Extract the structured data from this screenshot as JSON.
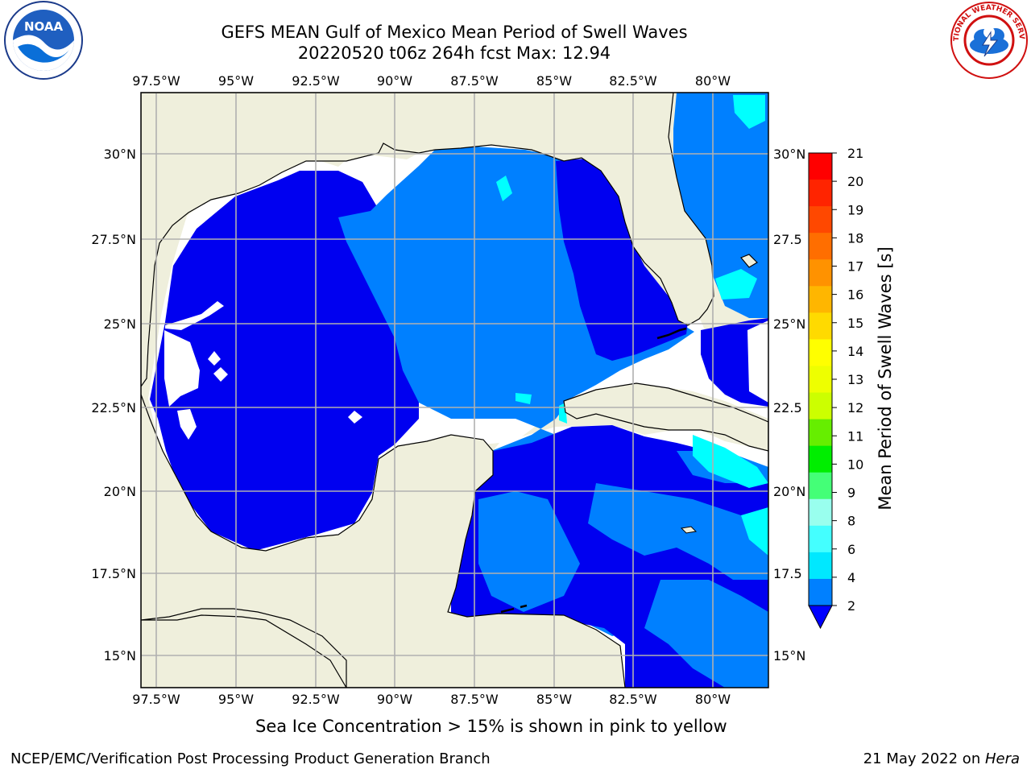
{
  "header": {
    "title_line1": "GEFS MEAN Gulf of Mexico Mean Period of Swell Waves",
    "title_line2": "20220520 t06z 264h fcst   Max: 12.94"
  },
  "logos": {
    "left": "noaa-logo",
    "left_text": "NOAA",
    "right": "national-weather-service-logo",
    "right_text": "NATIONAL WEATHER SERVICE"
  },
  "map": {
    "lon_labels": [
      "97.5°W",
      "95°W",
      "92.5°W",
      "90°W",
      "87.5°W",
      "85°W",
      "82.5°W",
      "80°W"
    ],
    "lat_labels_left": [
      "30°N",
      "27.5°N",
      "25°N",
      "22.5°N",
      "20°N",
      "17.5°N",
      "15°N"
    ],
    "lat_labels_right": [
      "30°N",
      "27.5",
      "25°N",
      "22.5",
      "20°N",
      "17.5",
      "15°N"
    ],
    "lon_range": [
      -98,
      -78
    ],
    "lat_range": [
      14,
      31.5
    ],
    "colors": {
      "land": "#efefdc",
      "grid": "#b0b0b0",
      "period_2_4": "#0080ff",
      "period_below_2": "#0000f0",
      "period_4_6": "#00ffff",
      "period_10_11": "#4fdd00",
      "period_11_12": "#6fff00",
      "period_12_13": "#ccff00"
    }
  },
  "colorbar": {
    "label": "Mean Period of Swell Waves [s]",
    "ticks": [
      "21",
      "20",
      "19",
      "18",
      "17",
      "16",
      "15",
      "14",
      "13",
      "12",
      "11",
      "10",
      "9",
      "8",
      "6",
      "4",
      "2"
    ],
    "colors": [
      "#ff0000",
      "#ff2400",
      "#ff4800",
      "#ff6e00",
      "#ff9200",
      "#ffb600",
      "#ffda00",
      "#ffff00",
      "#eeff00",
      "#ccff00",
      "#66ee00",
      "#00ee00",
      "#44ff77",
      "#99ffee",
      "#44ffff",
      "#00e8ff",
      "#0080ff"
    ],
    "extend_color": "#0000ff"
  },
  "notes": {
    "ice": "Sea Ice Concentration > 15% is shown in pink to yellow",
    "footer_left": "NCEP/EMC/Verification Post Processing Product Generation Branch",
    "footer_date": "21 May 2022 on ",
    "footer_machine": "Hera"
  }
}
